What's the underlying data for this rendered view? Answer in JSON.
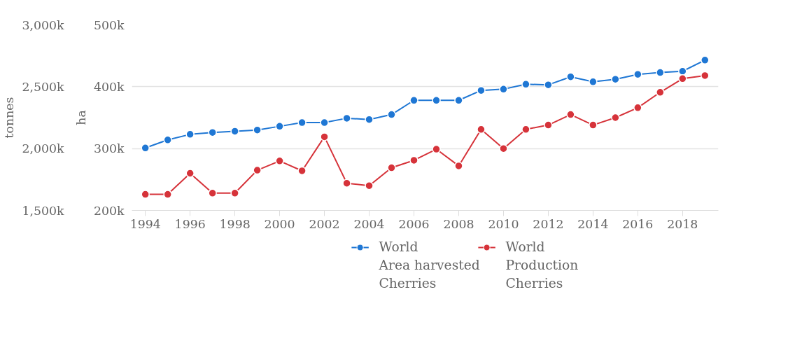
{
  "chart_data": {
    "type": "line",
    "xlabel": null,
    "ylabel": "ha",
    "y2label": "tonnes",
    "x": [
      1994,
      1995,
      1996,
      1997,
      1998,
      1999,
      2000,
      2001,
      2002,
      2003,
      2004,
      2005,
      2006,
      2007,
      2008,
      2009,
      2010,
      2011,
      2012,
      2013,
      2014,
      2015,
      2016,
      2017,
      2018,
      2019
    ],
    "series": [
      {
        "name": "World\nArea harvested\nCherries",
        "color": "#1f77d4",
        "values": [
          301000,
          314000,
          323000,
          326000,
          328000,
          330000,
          336000,
          342000,
          342000,
          349000,
          347000,
          355000,
          378000,
          378000,
          378000,
          394000,
          396000,
          404000,
          403000,
          416000,
          408000,
          412000,
          420000,
          423000,
          425000,
          443000
        ]
      },
      {
        "name": "World\nProduction\nCherries",
        "color": "#d6333a",
        "axis": "y2",
        "values": [
          1630000,
          1630000,
          1800000,
          1640000,
          1640000,
          1825000,
          1900000,
          1820000,
          2095000,
          1720000,
          1700000,
          1845000,
          1905000,
          1995000,
          1860000,
          2155000,
          2000000,
          2155000,
          2190000,
          2275000,
          2190000,
          2250000,
          2330000,
          2455000,
          2565000,
          2590000
        ]
      }
    ],
    "xlim": [
      1993.4,
      2019.6
    ],
    "xticks": [
      1994,
      1996,
      1998,
      2000,
      2002,
      2004,
      2006,
      2008,
      2010,
      2012,
      2014,
      2016,
      2018
    ],
    "ylim": [
      200000,
      500000
    ],
    "yticks": [
      {
        "value": 200000,
        "label": "200k"
      },
      {
        "value": 300000,
        "label": "300k"
      },
      {
        "value": 400000,
        "label": "400k"
      },
      {
        "value": 500000,
        "label": "500k"
      }
    ],
    "y2lim": [
      1500000,
      3000000
    ],
    "y2ticks": [
      {
        "value": 1500000,
        "label": "1,500k"
      },
      {
        "value": 2000000,
        "label": "2,000k"
      },
      {
        "value": 2500000,
        "label": "2,500k"
      },
      {
        "value": 3000000,
        "label": "3,000k"
      }
    ],
    "grid": "y",
    "legend": "bottom",
    "marker": "circle",
    "line_style": "solid"
  }
}
